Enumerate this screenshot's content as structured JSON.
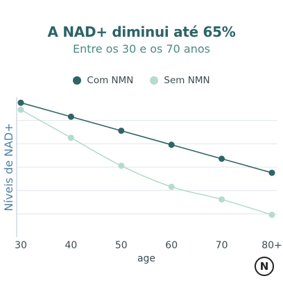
{
  "chart_data": {
    "type": "line",
    "title": "A NAD+ diminui até 65%",
    "subtitle": "Entre os 30 e os 70 anos",
    "xlabel": "age",
    "ylabel": "Níveis de NAD+",
    "categories": [
      "30",
      "40",
      "50",
      "60",
      "70",
      "80+"
    ],
    "series": [
      {
        "name": "Com NMN",
        "color": "#2e6466",
        "values": [
          96,
          86,
          76,
          66,
          56,
          46
        ]
      },
      {
        "name": "Sem NMN",
        "color": "#b5dbcc",
        "values": [
          91,
          71,
          51,
          36,
          27,
          16
        ]
      }
    ],
    "ylim": [
      0,
      100
    ],
    "grid": true,
    "legend_position": "top-center"
  },
  "logo": {
    "letter": "N"
  }
}
